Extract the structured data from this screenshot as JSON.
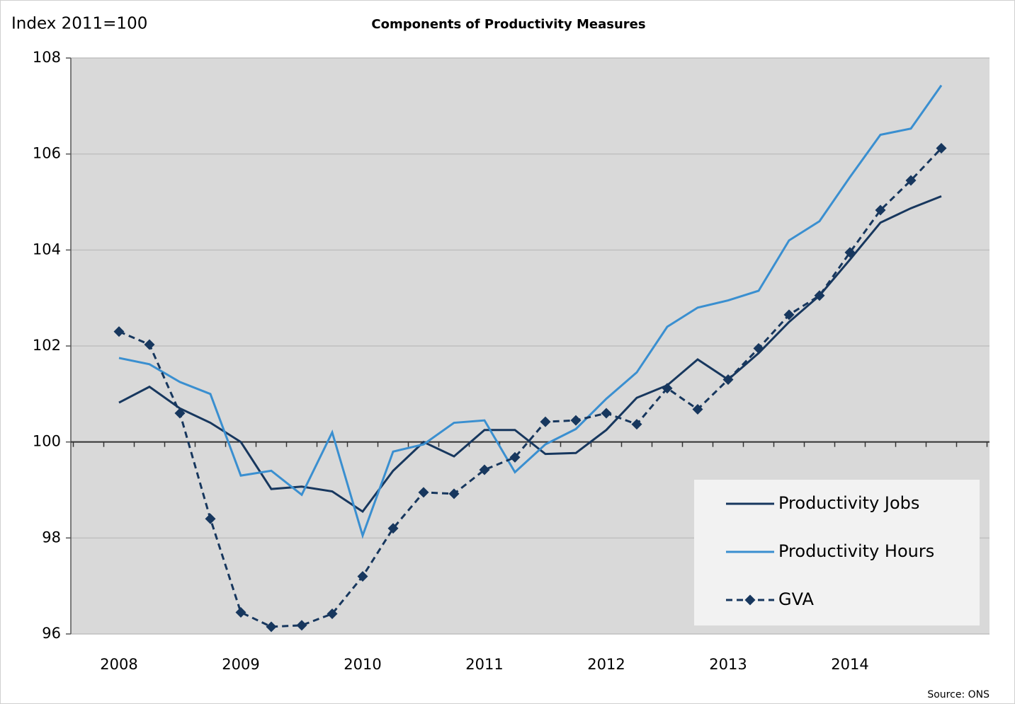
{
  "chart_data": {
    "type": "line",
    "title": "Components of Productivity Measures",
    "y_label": "Index 2011=100",
    "source": "Source: ONS",
    "categories": [
      "2008",
      null,
      null,
      null,
      "2009",
      null,
      null,
      null,
      "2010",
      null,
      null,
      null,
      "2011",
      null,
      null,
      null,
      "2012",
      null,
      null,
      null,
      "2013",
      null,
      null,
      null,
      "2014",
      null,
      null,
      null
    ],
    "series": [
      {
        "name": "Productivity Jobs",
        "color": "#17375e",
        "dashed": false,
        "marker": "none",
        "values": [
          100.82,
          101.15,
          100.7,
          100.4,
          100.0,
          99.02,
          99.07,
          98.97,
          98.55,
          99.4,
          100.0,
          99.7,
          100.25,
          100.25,
          99.75,
          99.77,
          100.25,
          100.92,
          101.18,
          101.72,
          101.3,
          101.85,
          102.5,
          103.05,
          103.8,
          104.57,
          104.87,
          105.12
        ]
      },
      {
        "name": "Productivity Hours",
        "color": "#3a8fd0",
        "dashed": false,
        "marker": "none",
        "values": [
          101.75,
          101.62,
          101.25,
          101.0,
          99.3,
          99.4,
          98.9,
          100.2,
          98.05,
          99.8,
          99.95,
          100.4,
          100.45,
          99.37,
          99.95,
          100.27,
          100.9,
          101.45,
          102.4,
          102.8,
          102.95,
          103.15,
          104.2,
          104.6,
          105.52,
          106.4,
          106.53,
          107.43
        ]
      },
      {
        "name": "GVA",
        "color": "#17375e",
        "dashed": true,
        "marker": "diamond",
        "values": [
          102.3,
          102.03,
          100.6,
          98.4,
          96.45,
          96.15,
          96.18,
          96.42,
          97.2,
          98.2,
          98.95,
          98.92,
          99.42,
          99.68,
          100.42,
          100.45,
          100.6,
          100.37,
          101.12,
          100.68,
          101.3,
          101.95,
          102.65,
          103.05,
          103.95,
          104.83,
          105.45,
          106.12
        ]
      }
    ],
    "ylim": [
      96,
      108
    ],
    "yticks": [
      96,
      98,
      100,
      102,
      104,
      106,
      108
    ],
    "x_axis_at": 100,
    "grid": true,
    "legend": "lower right"
  }
}
